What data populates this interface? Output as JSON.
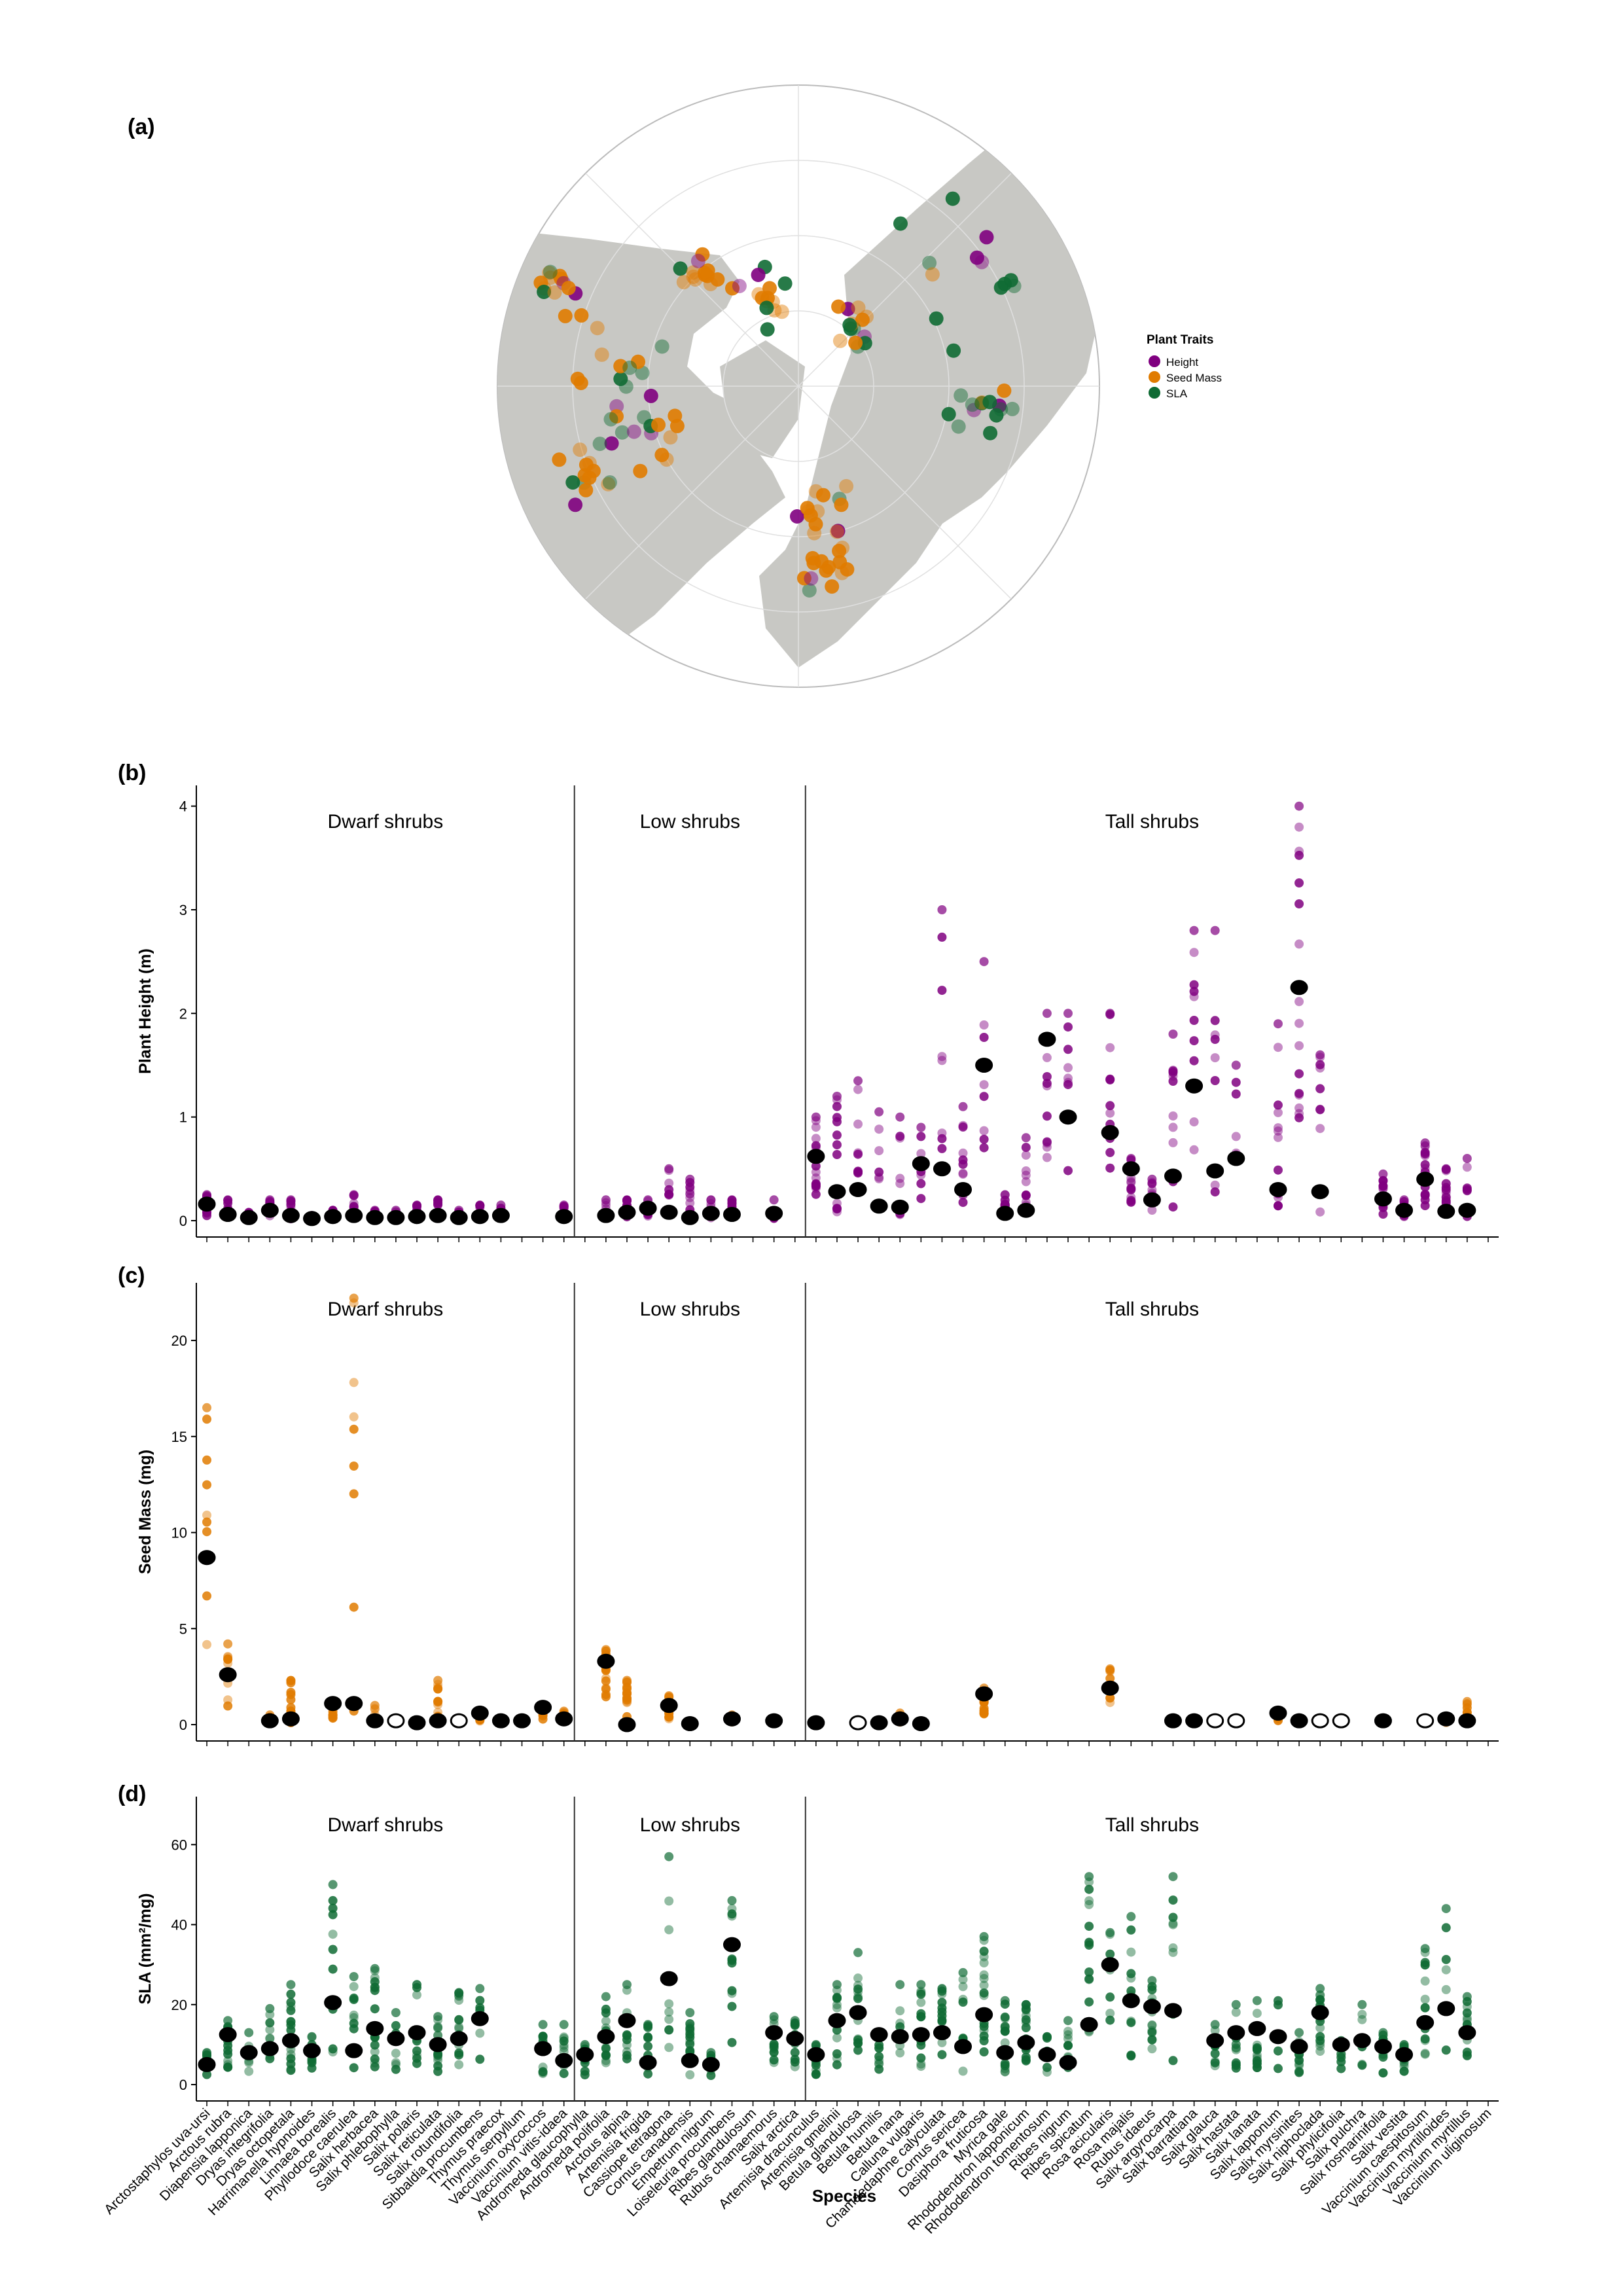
{
  "panel_labels": {
    "a": "(a)",
    "b": "(b)",
    "c": "(c)",
    "d": "(d)"
  },
  "map": {
    "legend_title": "Plant Traits",
    "legend": [
      {
        "label": "Height",
        "color": "#800080"
      },
      {
        "label": "Seed Mass",
        "color": "#e07b00"
      },
      {
        "label": "SLA",
        "color": "#0f6b34"
      }
    ]
  },
  "groups": [
    "Dwarf shrubs",
    "Low shrubs",
    "Tall shrubs"
  ],
  "species": [
    "Arctostaphylos uva-ursi",
    "Arctous rubra",
    "Diapensia lapponica",
    "Dryas integrifolia",
    "Dryas octopetala",
    "Harrimanella hypnoides",
    "Linnaea borealis",
    "Phyllodoce caerulea",
    "Salix herbacea",
    "Salix phlebophylla",
    "Salix polaris",
    "Salix reticulata",
    "Salix rotundifolia",
    "Sibbaldia procumbens",
    "Thymus praecox",
    "Thymus serpyllum",
    "Vaccinium oxycoccos",
    "Vaccinium vitis-idaea",
    "Andromeda glaucophylla",
    "Andromeda polifolia",
    "Arctous alpina",
    "Artemisia frigida",
    "Cassiope tetragona",
    "Cornus canadensis",
    "Empetrum nigrum",
    "Loiseleuria procumbens",
    "Ribes glandulosum",
    "Rubus chamaemorus",
    "Salix arctica",
    "Artemisia dracunculus",
    "Artemisia gmelinii",
    "Betula glandulosa",
    "Betula humilis",
    "Betula nana",
    "Calluna vulgaris",
    "Chamaedaphne calyculata",
    "Cornus sericea",
    "Dasiphora fruticosa",
    "Myrica gale",
    "Rhododendron lapponicum",
    "Rhododendron tomentosum",
    "Ribes nigrum",
    "Ribes spicatum",
    "Rosa acicularis",
    "Rosa majalis",
    "Rubus idaeus",
    "Salix argyrocarpa",
    "Salix barrattiana",
    "Salix glauca",
    "Salix hastata",
    "Salix lanata",
    "Salix lapponum",
    "Salix myrsinites",
    "Salix niphoclada",
    "Salix phylicifolia",
    "Salix pulchra",
    "Salix rosmarinifolia",
    "Salix vestita",
    "Vaccinium caespitosum",
    "Vaccinium myrtilloides",
    "Vaccinium myrtillus",
    "Vaccinium uliginosum"
  ],
  "x_axis_title": "Species",
  "panels": [
    {
      "id": "b",
      "ylabel": "Plant Height (m)",
      "yticks": [
        "0",
        "1",
        "2",
        "3",
        "4"
      ]
    },
    {
      "id": "c",
      "ylabel": "Seed Mass (mg)",
      "yticks": [
        "0",
        "5",
        "10",
        "15",
        "20"
      ]
    },
    {
      "id": "d",
      "ylabel": "SLA (mm²/mg)",
      "yticks": [
        "0",
        "20",
        "40",
        "60"
      ]
    }
  ],
  "chart_data": [
    {
      "type": "scatter",
      "title": "",
      "xlabel": "Species",
      "ylabel": "Plant Height (m)",
      "ylim": [
        0,
        4.2
      ],
      "color": "#800080",
      "mean_values": [
        0.16,
        0.06,
        0.03,
        0.1,
        0.05,
        0.02,
        0.04,
        0.05,
        0.03,
        0.03,
        0.04,
        0.05,
        0.03,
        0.04,
        0.05,
        null,
        null,
        0.04,
        null,
        0.05,
        0.08,
        0.12,
        0.08,
        0.03,
        0.07,
        0.06,
        null,
        0.07,
        null,
        0.62,
        0.28,
        0.3,
        0.14,
        0.13,
        0.55,
        0.5,
        0.3,
        1.5,
        0.07,
        0.1,
        1.75,
        1.0,
        null,
        0.85,
        0.5,
        0.2,
        0.43,
        1.3,
        0.48,
        0.6,
        null,
        0.3,
        2.25,
        0.28,
        null,
        null,
        0.21,
        0.1,
        0.4,
        0.09,
        0.1,
        null
      ],
      "max_values": [
        0.25,
        0.2,
        0.08,
        0.2,
        0.2,
        0.05,
        0.1,
        0.25,
        0.1,
        0.1,
        0.15,
        0.2,
        0.1,
        0.15,
        0.15,
        null,
        null,
        0.15,
        null,
        0.2,
        0.2,
        0.2,
        0.5,
        0.4,
        0.2,
        0.2,
        null,
        0.2,
        null,
        1.0,
        1.2,
        1.35,
        1.05,
        1.0,
        0.9,
        3.0,
        1.1,
        2.5,
        0.25,
        0.8,
        2.0,
        2.0,
        null,
        2.0,
        0.6,
        0.4,
        1.8,
        2.8,
        2.8,
        1.5,
        null,
        1.9,
        4.0,
        1.6,
        null,
        null,
        0.45,
        0.2,
        0.75,
        0.5,
        0.6,
        null
      ]
    },
    {
      "type": "scatter",
      "title": "",
      "xlabel": "Species",
      "ylabel": "Seed Mass (mg)",
      "ylim": [
        0,
        23
      ],
      "color": "#e07b00",
      "mean_values": [
        8.7,
        2.6,
        null,
        0.2,
        0.3,
        null,
        1.1,
        1.1,
        0.2,
        0.2,
        0.1,
        0.2,
        0.2,
        0.6,
        0.2,
        0.2,
        0.9,
        0.3,
        null,
        3.3,
        0.0,
        null,
        1.0,
        0.05,
        null,
        0.3,
        null,
        0.2,
        null,
        0.1,
        null,
        0.1,
        0.1,
        0.3,
        0.05,
        null,
        null,
        1.6,
        null,
        null,
        null,
        null,
        null,
        1.9,
        null,
        null,
        0.2,
        0.2,
        0.2,
        0.2,
        null,
        0.6,
        0.2,
        0.2,
        0.2,
        null,
        0.2,
        null,
        0.2,
        0.3,
        0.2,
        null
      ],
      "open_mean_species": [
        "Salix phlebophylla",
        "Salix rotundifolia",
        "Artemisia gmelinii",
        "Betula glandulosa",
        "Salix glauca",
        "Salix hastata",
        "Salix lanata",
        "Salix niphoclada",
        "Salix phylicifolia",
        "Salix pulchra",
        "Salix vestita",
        "Vaccinium caespitosum"
      ],
      "max_values": [
        16.5,
        4.2,
        null,
        0.5,
        2.3,
        null,
        1.2,
        22.2,
        1.0,
        0.2,
        0.1,
        2.3,
        0.2,
        0.6,
        0.3,
        0.3,
        0.9,
        0.7,
        null,
        3.9,
        2.3,
        null,
        1.5,
        0.1,
        null,
        0.5,
        null,
        0.3,
        null,
        0.2,
        null,
        0.1,
        0.1,
        0.6,
        0.1,
        null,
        null,
        1.9,
        null,
        null,
        null,
        null,
        null,
        2.9,
        null,
        null,
        0.2,
        0.2,
        0.2,
        0.2,
        null,
        0.6,
        0.2,
        0.2,
        0.2,
        null,
        0.2,
        null,
        0.2,
        0.4,
        1.2,
        null
      ]
    },
    {
      "type": "scatter",
      "title": "",
      "xlabel": "Species",
      "ylabel": "SLA (mm²/mg)",
      "ylim": [
        0,
        72
      ],
      "color": "#0f6b34",
      "mean_values": [
        5,
        12.5,
        8,
        9,
        11,
        8.5,
        20.5,
        8.5,
        14,
        11.5,
        13,
        10,
        11.5,
        16.5,
        null,
        null,
        9,
        6,
        7.5,
        12,
        16,
        5.5,
        26.5,
        6,
        5,
        35,
        null,
        13,
        11.5,
        7.5,
        16,
        18,
        12.5,
        12,
        12.5,
        13,
        9.5,
        17.5,
        8,
        10.5,
        7.5,
        5.5,
        15,
        30,
        21,
        19.5,
        18.5,
        null,
        11,
        13,
        14,
        12,
        9.5,
        18,
        10,
        11,
        9.5,
        7.5,
        15.5,
        19,
        13,
        null
      ],
      "max_values": [
        8,
        16,
        13,
        19,
        25,
        12,
        50,
        27,
        29,
        18,
        25,
        17,
        23,
        24,
        null,
        null,
        15,
        15,
        10,
        22,
        25,
        15,
        57,
        18,
        8,
        46,
        null,
        17,
        16,
        10,
        25,
        33,
        13,
        25,
        25,
        24,
        28,
        37,
        21,
        20,
        12,
        16,
        52,
        38,
        42,
        26,
        52,
        null,
        15,
        20,
        21,
        21,
        13,
        24,
        11,
        20,
        13,
        10,
        34,
        44,
        22,
        null
      ]
    }
  ]
}
